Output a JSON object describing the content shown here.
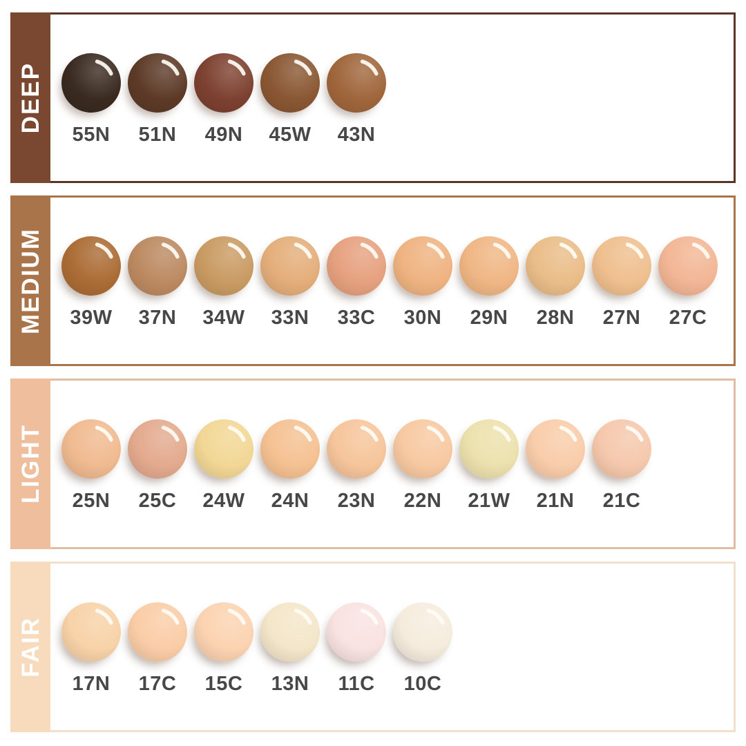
{
  "page": {
    "background": "#ffffff",
    "swatch_label_color": "#474747",
    "gloss_highlight_color": "rgba(255,252,244,0.92)",
    "swatch_shadow_color": "rgba(105,80,68,0.42)",
    "section_label_color": "#ffffff"
  },
  "sections": [
    {
      "id": "deep",
      "label": "DEEP",
      "sidebar_color": "#7a4830",
      "border_color": "#5a3424",
      "swatches": [
        {
          "code": "55N",
          "color": "#3a2a20"
        },
        {
          "code": "51N",
          "color": "#5d3a27"
        },
        {
          "code": "49N",
          "color": "#7d4130"
        },
        {
          "code": "45W",
          "color": "#8a5733"
        },
        {
          "code": "43N",
          "color": "#a0663c"
        }
      ]
    },
    {
      "id": "medium",
      "label": "MEDIUM",
      "sidebar_color": "#a9744a",
      "border_color": "#a9744a",
      "swatches": [
        {
          "code": "39W",
          "color": "#ab6c35"
        },
        {
          "code": "37N",
          "color": "#bc8a61"
        },
        {
          "code": "34W",
          "color": "#c99b63"
        },
        {
          "code": "33N",
          "color": "#e4ae7a"
        },
        {
          "code": "33C",
          "color": "#e6a17f"
        },
        {
          "code": "30N",
          "color": "#efb381"
        },
        {
          "code": "29N",
          "color": "#f0b685"
        },
        {
          "code": "28N",
          "color": "#eabd88"
        },
        {
          "code": "27N",
          "color": "#efbf8e"
        },
        {
          "code": "27C",
          "color": "#f2b695"
        }
      ]
    },
    {
      "id": "light",
      "label": "LIGHT",
      "sidebar_color": "#eebe9d",
      "border_color": "#e0bda5",
      "swatches": [
        {
          "code": "25N",
          "color": "#f0ba90"
        },
        {
          "code": "25C",
          "color": "#e3aa8e"
        },
        {
          "code": "24W",
          "color": "#f2d795"
        },
        {
          "code": "24N",
          "color": "#f5c192"
        },
        {
          "code": "23N",
          "color": "#f6c59b"
        },
        {
          "code": "22N",
          "color": "#f7c9a1"
        },
        {
          "code": "21W",
          "color": "#ece1ad"
        },
        {
          "code": "21N",
          "color": "#f9cdaa"
        },
        {
          "code": "21C",
          "color": "#f5c8ac"
        }
      ]
    },
    {
      "id": "fair",
      "label": "FAIR",
      "sidebar_color": "#f8dabd",
      "border_color": "#f3e0cb",
      "swatches": [
        {
          "code": "17N",
          "color": "#f8d2a8"
        },
        {
          "code": "17C",
          "color": "#facda7"
        },
        {
          "code": "15C",
          "color": "#fbd3b1"
        },
        {
          "code": "13N",
          "color": "#f4e6c9"
        },
        {
          "code": "11C",
          "color": "#f9e2e2"
        },
        {
          "code": "10C",
          "color": "#f5ecdd"
        }
      ]
    }
  ]
}
